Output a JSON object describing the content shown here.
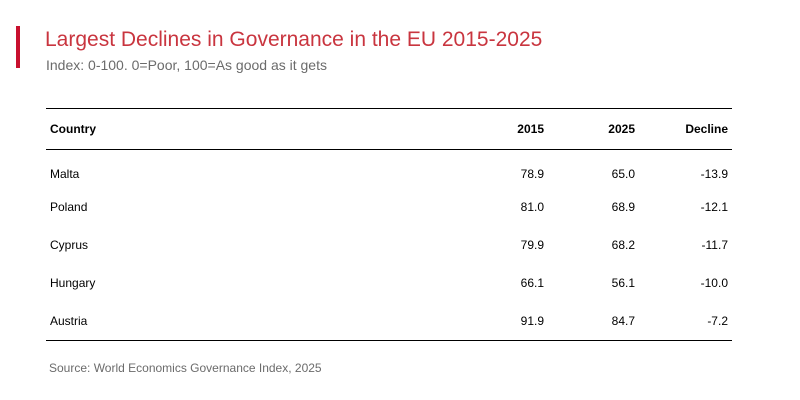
{
  "chart_data": {
    "type": "table",
    "title": "Largest Declines in Governance in the EU 2015-2025",
    "subtitle": "Index: 0-100. 0=Poor, 100=As good as it gets",
    "columns": [
      "Country",
      "2015",
      "2025",
      "Decline"
    ],
    "rows": [
      {
        "country": "Malta",
        "y2015": "78.9",
        "y2025": "65.0",
        "decline": "-13.9"
      },
      {
        "country": "Poland",
        "y2015": "81.0",
        "y2025": "68.9",
        "decline": "-12.1"
      },
      {
        "country": "Cyprus",
        "y2015": "79.9",
        "y2025": "68.2",
        "decline": "-11.7"
      },
      {
        "country": "Hungary",
        "y2015": "66.1",
        "y2025": "56.1",
        "decline": "-10.0"
      },
      {
        "country": "Austria",
        "y2015": "91.9",
        "y2025": "84.7",
        "decline": "-7.2"
      }
    ],
    "source": "Source: World Economics Governance Index, 2025"
  },
  "colors": {
    "title": "#c9353f",
    "accent_bar": "#c8102e",
    "subtitle": "#6b6b6b",
    "rule": "#000000"
  }
}
